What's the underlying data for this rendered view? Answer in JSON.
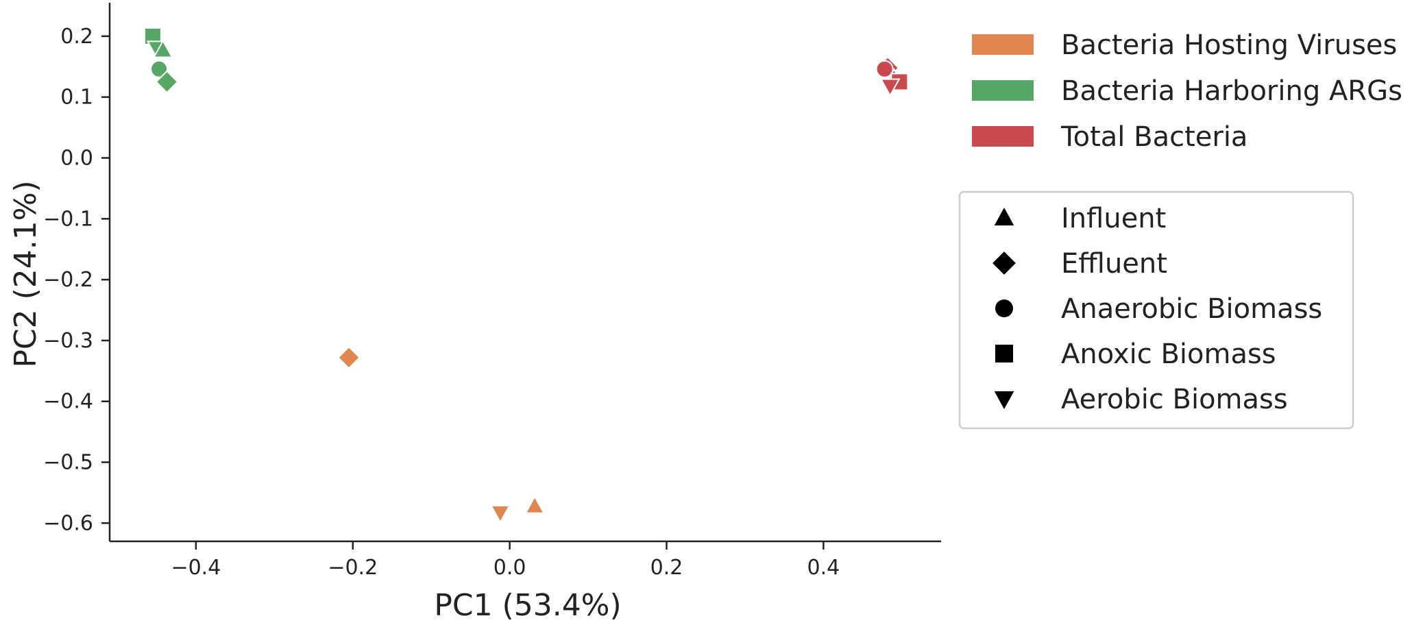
{
  "chart_data": {
    "type": "scatter",
    "xlabel": "PC1 (53.4%)",
    "ylabel": "PC2 (24.1%)",
    "xlim": [
      -0.51,
      0.55
    ],
    "ylim": [
      -0.63,
      0.255
    ],
    "x_ticks": [
      -0.4,
      -0.2,
      0.0,
      0.2,
      0.4
    ],
    "x_tick_labels": [
      "−0.4",
      "−0.2",
      "0.0",
      "0.2",
      "0.4"
    ],
    "y_ticks": [
      0.2,
      0.1,
      0.0,
      -0.1,
      -0.2,
      -0.3,
      -0.4,
      -0.5,
      -0.6
    ],
    "y_tick_labels": [
      "0.2",
      "0.1",
      "0.0",
      "−0.1",
      "−0.2",
      "−0.3",
      "−0.4",
      "−0.5",
      "−0.6"
    ],
    "grid": false,
    "colors": {
      "Bacteria Hosting Viruses": "#e08751",
      "Bacteria Harboring ARGs": "#56a665",
      "Total Bacteria": "#c9494f"
    },
    "color_legend": {
      "placement": "top-right, outside plot",
      "entries": [
        "Bacteria Hosting Viruses",
        "Bacteria Harboring ARGs",
        "Total Bacteria"
      ]
    },
    "marker_legend": {
      "placement": "right, outside plot, framed",
      "entries": [
        {
          "label": "Influent",
          "marker": "triangle-up"
        },
        {
          "label": "Effluent",
          "marker": "diamond"
        },
        {
          "label": "Anaerobic Biomass",
          "marker": "circle"
        },
        {
          "label": "Anoxic Biomass",
          "marker": "square"
        },
        {
          "label": "Aerobic Biomass",
          "marker": "triangle-down"
        }
      ]
    },
    "series": [
      {
        "name": "Bacteria Hosting Viruses",
        "points": [
          {
            "sample": "Effluent",
            "x": -0.205,
            "y": -0.328
          },
          {
            "sample": "Aerobic Biomass",
            "x": -0.012,
            "y": -0.583
          },
          {
            "sample": "Influent",
            "x": 0.032,
            "y": -0.572
          }
        ]
      },
      {
        "name": "Bacteria Harboring ARGs",
        "points": [
          {
            "sample": "Anoxic Biomass",
            "x": -0.455,
            "y": 0.2
          },
          {
            "sample": "Aerobic Biomass",
            "x": -0.45,
            "y": 0.18
          },
          {
            "sample": "Influent",
            "x": -0.442,
            "y": 0.177
          },
          {
            "sample": "Anaerobic Biomass",
            "x": -0.447,
            "y": 0.146
          },
          {
            "sample": "Effluent",
            "x": -0.437,
            "y": 0.125
          }
        ]
      },
      {
        "name": "Total Bacteria",
        "points": [
          {
            "sample": "Effluent",
            "x": 0.482,
            "y": 0.148
          },
          {
            "sample": "Anaerobic Biomass",
            "x": 0.478,
            "y": 0.146
          },
          {
            "sample": "Influent",
            "x": 0.49,
            "y": 0.13
          },
          {
            "sample": "Anoxic Biomass",
            "x": 0.497,
            "y": 0.125
          },
          {
            "sample": "Aerobic Biomass",
            "x": 0.485,
            "y": 0.118
          }
        ]
      }
    ]
  }
}
